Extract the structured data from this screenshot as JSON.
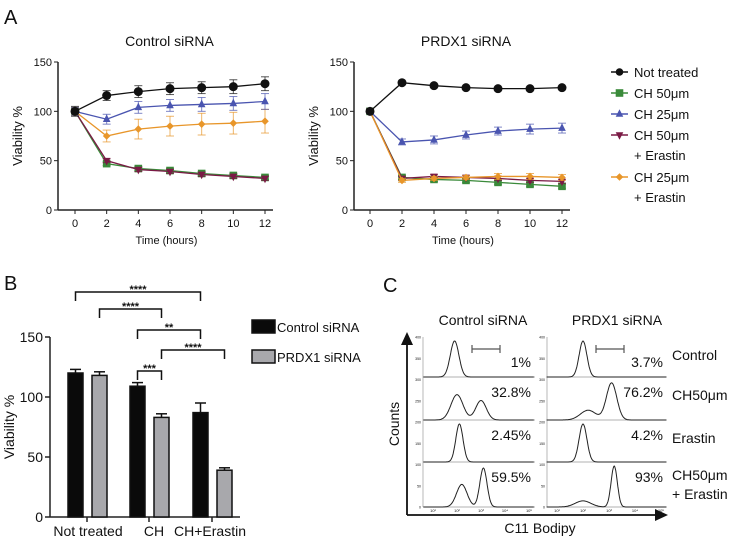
{
  "chart_data": [
    {
      "panel": "A",
      "type": "line",
      "title": "Control siRNA",
      "xlabel": "Time (hours)",
      "ylabel": "Viability %",
      "x": [
        0,
        2,
        4,
        6,
        8,
        10,
        12
      ],
      "xticks": [
        "0",
        "2",
        "4",
        "6",
        "8",
        "10",
        "12"
      ],
      "yticks": [
        "0",
        "50",
        "100",
        "150"
      ],
      "ylim": [
        0,
        150
      ],
      "series": [
        {
          "name": "Not treated",
          "color": "#111111",
          "marker": "circle",
          "values": [
            100,
            116,
            120,
            123,
            124,
            125,
            128
          ],
          "err": [
            5,
            5,
            6,
            6,
            6,
            7,
            7
          ]
        },
        {
          "name": "CH 50μm",
          "color": "#3a8a3a",
          "marker": "square",
          "values": [
            100,
            47,
            42,
            40,
            37,
            35,
            33
          ],
          "err": [
            2,
            2,
            2,
            2,
            2,
            2,
            2
          ]
        },
        {
          "name": "CH 25μm",
          "color": "#4a55b0",
          "marker": "triangle-up",
          "values": [
            100,
            92,
            104,
            106,
            107,
            108,
            110
          ],
          "err": [
            4,
            5,
            6,
            6,
            7,
            7,
            8
          ]
        },
        {
          "name": "CH 50μm + Erastin",
          "color": "#7a1a45",
          "marker": "triangle-down",
          "values": [
            100,
            50,
            41,
            39,
            36,
            34,
            32
          ],
          "err": [
            2,
            2,
            2,
            2,
            2,
            2,
            2
          ]
        },
        {
          "name": "CH 25μm + Erastin",
          "color": "#e8962a",
          "marker": "diamond",
          "values": [
            100,
            75,
            82,
            85,
            87,
            88,
            90
          ],
          "err": [
            4,
            6,
            10,
            10,
            11,
            11,
            12
          ]
        }
      ]
    },
    {
      "panel": "A",
      "type": "line",
      "title": "PRDX1 siRNA",
      "xlabel": "Time (hours)",
      "ylabel": "Viability %",
      "x": [
        0,
        2,
        4,
        6,
        8,
        10,
        12
      ],
      "xticks": [
        "0",
        "2",
        "4",
        "6",
        "8",
        "10",
        "12"
      ],
      "yticks": [
        "0",
        "50",
        "100",
        "150"
      ],
      "ylim": [
        0,
        150
      ],
      "legend": "right",
      "series": [
        {
          "name": "Not treated",
          "color": "#111111",
          "marker": "circle",
          "values": [
            100,
            129,
            126,
            124,
            123,
            123,
            124
          ],
          "err": [
            1,
            1,
            1,
            1,
            1,
            1,
            1
          ]
        },
        {
          "name": "CH 50μm",
          "color": "#3a8a3a",
          "marker": "square",
          "values": [
            100,
            33,
            31,
            30,
            28,
            26,
            24
          ],
          "err": [
            2,
            2,
            2,
            2,
            2,
            2,
            2
          ]
        },
        {
          "name": "CH 25μm",
          "color": "#4a55b0",
          "marker": "triangle-up",
          "values": [
            100,
            69,
            71,
            76,
            80,
            82,
            83
          ],
          "err": [
            2,
            3,
            4,
            4,
            4,
            5,
            5
          ]
        },
        {
          "name": "CH 50μm + Erastin",
          "color": "#7a1a45",
          "marker": "triangle-down",
          "values": [
            100,
            32,
            34,
            33,
            32,
            30,
            29
          ],
          "err": [
            2,
            2,
            2,
            2,
            2,
            2,
            2
          ]
        },
        {
          "name": "CH 25μm + Erastin",
          "color": "#e8962a",
          "marker": "diamond",
          "values": [
            100,
            30,
            32,
            33,
            34,
            34,
            33
          ],
          "err": [
            2,
            2,
            2,
            2,
            3,
            3,
            3
          ]
        }
      ],
      "legend_lines": [
        [
          "Not treated"
        ],
        [
          "CH 50μm"
        ],
        [
          "CH 25μm"
        ],
        [
          "CH 50μm",
          "+ Erastin"
        ],
        [
          "CH 25μm",
          "+ Erastin"
        ]
      ]
    },
    {
      "panel": "B",
      "type": "bar",
      "ylabel": "Viability %",
      "categories": [
        "Not treated",
        "CH",
        "CH+Erastin"
      ],
      "yticks": [
        "0",
        "50",
        "100",
        "150"
      ],
      "ylim": [
        0,
        150
      ],
      "legend": "right",
      "series": [
        {
          "name": "Control siRNA",
          "color": "#0a0a0a",
          "values": [
            120,
            109,
            87
          ],
          "err": [
            3,
            3,
            8
          ]
        },
        {
          "name": "PRDX1 siRNA",
          "color": "#a8a8ac",
          "values": [
            118,
            83,
            39
          ],
          "err": [
            3,
            3,
            2
          ]
        }
      ],
      "significance": [
        {
          "from": "Not treated/Control siRNA",
          "to": "CH+Erastin/Control siRNA",
          "label": "****"
        },
        {
          "from": "Not treated/PRDX1 siRNA",
          "to": "CH/PRDX1 siRNA",
          "label": "****"
        },
        {
          "from": "CH/Control siRNA",
          "to": "CH+Erastin/Control siRNA",
          "label": "**"
        },
        {
          "from": "CH/PRDX1 siRNA",
          "to": "CH+Erastin/PRDX1 siRNA",
          "label": "****"
        },
        {
          "from": "CH/Control siRNA",
          "to": "CH/PRDX1 siRNA",
          "label": "***"
        }
      ]
    },
    {
      "panel": "C",
      "type": "histogram",
      "xlabel": "C11 Bodipy",
      "ylabel": "Counts",
      "columns": [
        "Control siRNA",
        "PRDX1 siRNA"
      ],
      "rows": [
        {
          "label": [
            "Control"
          ],
          "percent": [
            "1%",
            "3.7%"
          ],
          "peaks_log10": [
            [
              [
                1.9,
                1,
                0.18
              ]
            ],
            [
              [
                2.0,
                1,
                0.15
              ]
            ]
          ]
        },
        {
          "label": [
            "CH50μm"
          ],
          "percent": [
            "32.8%",
            "76.2%"
          ],
          "peaks_log10": [
            [
              [
                2.0,
                0.65,
                0.25
              ],
              [
                3.0,
                0.5,
                0.22
              ]
            ],
            [
              [
                2.2,
                0.25,
                0.3
              ],
              [
                3.1,
                0.95,
                0.2
              ]
            ]
          ]
        },
        {
          "label": [
            "Erastin"
          ],
          "percent": [
            "2.45%",
            "4.2%"
          ],
          "peaks_log10": [
            [
              [
                2.1,
                1,
                0.15
              ]
            ],
            [
              [
                2.0,
                1,
                0.15
              ]
            ]
          ]
        },
        {
          "label": [
            "CH50μm",
            "+ Erastin"
          ],
          "percent": [
            "59.5%",
            "93%"
          ],
          "peaks_log10": [
            [
              [
                2.2,
                0.55,
                0.22
              ],
              [
                3.1,
                0.95,
                0.15
              ]
            ],
            [
              [
                2.0,
                0.15,
                0.3
              ],
              [
                3.2,
                1,
                0.12
              ]
            ]
          ]
        }
      ],
      "xticks": [
        "10¹",
        "10²",
        "10³",
        "10⁴",
        "10⁵"
      ],
      "yticks": [
        "0",
        "50",
        "100",
        "150",
        "200",
        "250",
        "300",
        "350",
        "400"
      ]
    }
  ],
  "panel_labels": [
    "A",
    "B",
    "C"
  ]
}
